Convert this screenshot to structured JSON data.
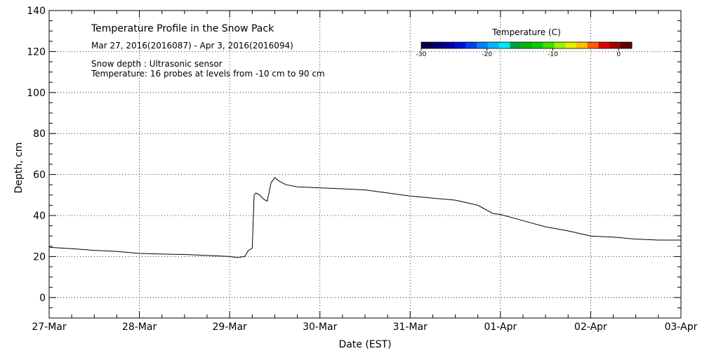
{
  "chart_data": {
    "type": "line",
    "title": "Temperature Profile in the Snow Pack",
    "subtitle": "Mar 27, 2016(2016087) - Apr  3, 2016(2016094)",
    "notes": [
      "Snow depth : Ultrasonic sensor",
      "Temperature: 16 probes at levels from -10 cm to 90 cm"
    ],
    "xlabel": "Date (EST)",
    "ylabel": "Depth, cm",
    "x_ticks": [
      "27-Mar",
      "28-Mar",
      "29-Mar",
      "30-Mar",
      "31-Mar",
      "01-Apr",
      "02-Apr",
      "03-Apr"
    ],
    "xlim_days": [
      0,
      7
    ],
    "ylim": [
      -10,
      140
    ],
    "y_ticks": [
      0,
      20,
      40,
      60,
      80,
      100,
      120,
      140
    ],
    "grid": true,
    "colorbar": {
      "title": "Temperature (C)",
      "tick_values": [
        -30,
        -20,
        -10,
        0
      ],
      "tick_labels": [
        "-30",
        "-20",
        "-10",
        "0"
      ],
      "range": [
        -30,
        2
      ],
      "colors": [
        "#000040",
        "#000070",
        "#0000a0",
        "#0010d0",
        "#0040f0",
        "#0080ff",
        "#00b8ff",
        "#00e8ff",
        "#00a040",
        "#00b800",
        "#00d000",
        "#40e000",
        "#a0f000",
        "#e0f000",
        "#ffc000",
        "#ff6000",
        "#e00000",
        "#a00000",
        "#600000"
      ]
    },
    "series": [
      {
        "color": "#000000",
        "x": [
          "27-Mar 00:00",
          "27-Mar 06:00",
          "27-Mar 12:00",
          "27-Mar 18:00",
          "28-Mar 00:00",
          "28-Mar 06:00",
          "28-Mar 12:00",
          "28-Mar 18:00",
          "29-Mar 00:00",
          "29-Mar 02:00",
          "29-Mar 04:00",
          "29-Mar 05:00",
          "29-Mar 06:00",
          "29-Mar 06:30",
          "29-Mar 07:00",
          "29-Mar 08:00",
          "29-Mar 09:00",
          "29-Mar 10:00",
          "29-Mar 11:00",
          "29-Mar 12:00",
          "29-Mar 13:00",
          "29-Mar 15:00",
          "29-Mar 18:00",
          "30-Mar 00:00",
          "30-Mar 06:00",
          "30-Mar 12:00",
          "30-Mar 18:00",
          "31-Mar 00:00",
          "31-Mar 06:00",
          "31-Mar 12:00",
          "31-Mar 18:00",
          "31-Mar 22:00",
          "01-Apr 00:00",
          "01-Apr 06:00",
          "01-Apr 12:00",
          "01-Apr 18:00",
          "02-Apr 00:00",
          "02-Apr 06:00",
          "02-Apr 12:00",
          "02-Apr 18:00",
          "03-Apr 00:00"
        ],
        "values": [
          24.5,
          23.8,
          23.0,
          22.5,
          21.5,
          21.2,
          21.0,
          20.5,
          20.0,
          19.5,
          20.0,
          23.0,
          24.0,
          50.0,
          51.0,
          50.0,
          48.0,
          47.0,
          56.0,
          58.5,
          57.0,
          55.0,
          54.0,
          53.5,
          53.0,
          52.5,
          51.0,
          49.5,
          48.5,
          47.5,
          45.0,
          41.0,
          40.5,
          37.5,
          34.5,
          32.5,
          30.0,
          29.5,
          28.5,
          28.0,
          28.0
        ]
      }
    ]
  }
}
